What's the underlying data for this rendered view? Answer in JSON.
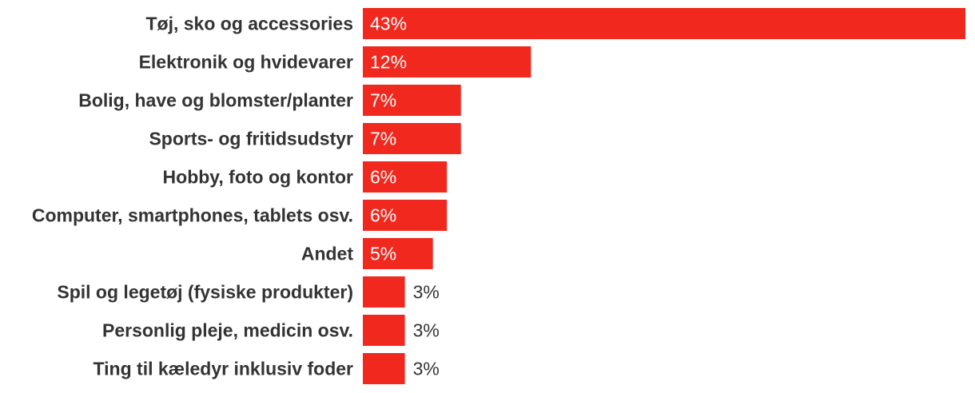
{
  "colors": {
    "bar": "#f0281e",
    "label_text": "#333333",
    "value_inside": "#ffffff",
    "value_outside": "#333333",
    "background": "#ffffff"
  },
  "chart_data": {
    "type": "bar",
    "orientation": "horizontal",
    "title": "",
    "xlabel": "",
    "ylabel": "",
    "xlim": [
      0,
      43
    ],
    "grid": false,
    "legend": "none",
    "unit": "%",
    "categories": [
      "Tøj, sko og accessories",
      "Elektronik og hvidevarer",
      "Bolig, have og blomster/planter",
      "Sports- og fritidsudstyr",
      "Hobby, foto og kontor",
      "Computer, smartphones, tablets osv.",
      "Andet",
      "Spil og legetøj (fysiske produkter)",
      "Personlig pleje, medicin osv.",
      "Ting til kæledyr inklusiv foder"
    ],
    "values": [
      43,
      12,
      7,
      7,
      6,
      6,
      5,
      3,
      3,
      3
    ],
    "value_labels": [
      "43%",
      "12%",
      "7%",
      "7%",
      "6%",
      "6%",
      "5%",
      "3%",
      "3%",
      "3%"
    ]
  }
}
